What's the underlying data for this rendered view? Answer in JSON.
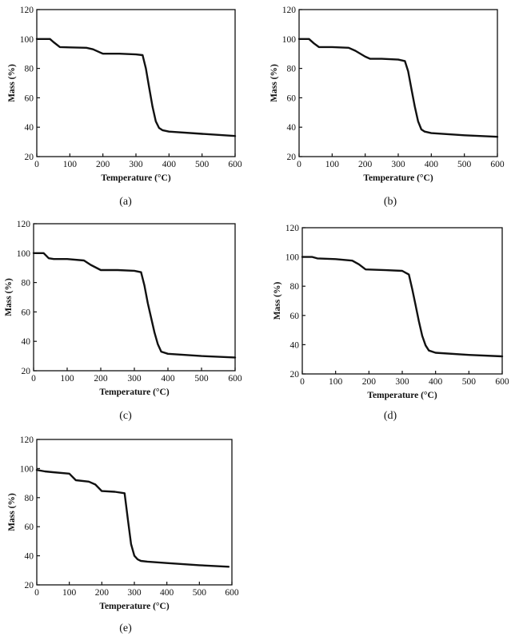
{
  "chart_data": [
    {
      "type": "line",
      "caption": "(a)",
      "xlabel": "Temperature",
      "xlabel_unit": "(°C)",
      "ylabel": "Mass (%)",
      "xlim": [
        0,
        600
      ],
      "ylim": [
        20,
        120
      ],
      "x_ticks": [
        "0",
        "100",
        "200",
        "300",
        "400",
        "500",
        "600"
      ],
      "y_ticks": [
        "20",
        "40",
        "60",
        "80",
        "100",
        "120"
      ],
      "grid": false,
      "x": [
        0,
        40,
        50,
        70,
        100,
        150,
        170,
        200,
        250,
        300,
        320,
        330,
        340,
        350,
        360,
        370,
        380,
        400,
        500,
        600
      ],
      "y": [
        100,
        100,
        98,
        94.5,
        94.3,
        94,
        93,
        90,
        90,
        89.5,
        89,
        80,
        67,
        54,
        44,
        39.5,
        38,
        37,
        35.5,
        34
      ]
    },
    {
      "type": "line",
      "caption": "(b)",
      "xlabel": "Temperature",
      "xlabel_unit": "(°C)",
      "ylabel": "Mass (%)",
      "xlim": [
        0,
        600
      ],
      "ylim": [
        20,
        120
      ],
      "x_ticks": [
        "0",
        "100",
        "200",
        "300",
        "400",
        "500",
        "600"
      ],
      "y_ticks": [
        "20",
        "40",
        "60",
        "80",
        "100",
        "120"
      ],
      "grid": false,
      "x": [
        0,
        30,
        45,
        60,
        100,
        150,
        170,
        200,
        215,
        250,
        300,
        320,
        330,
        340,
        350,
        360,
        370,
        380,
        400,
        500,
        600
      ],
      "y": [
        100,
        100,
        97,
        94.5,
        94.5,
        94,
        92,
        88,
        86.5,
        86.5,
        86,
        85,
        78,
        66,
        54,
        44,
        38.5,
        37,
        36,
        34.5,
        33.5
      ]
    },
    {
      "type": "line",
      "caption": "(c)",
      "xlabel": "Temperature",
      "xlabel_unit": "(°C)",
      "ylabel": "Mass (%)",
      "xlim": [
        0,
        600
      ],
      "ylim": [
        20,
        120
      ],
      "x_ticks": [
        "0",
        "100",
        "200",
        "300",
        "400",
        "500",
        "600"
      ],
      "y_ticks": [
        "20",
        "40",
        "60",
        "80",
        "100",
        "120"
      ],
      "grid": false,
      "x": [
        0,
        30,
        45,
        60,
        100,
        150,
        170,
        200,
        250,
        300,
        320,
        330,
        340,
        350,
        360,
        370,
        380,
        400,
        500,
        600
      ],
      "y": [
        100,
        100,
        96.5,
        96,
        96,
        95,
        92,
        88.5,
        88.5,
        88,
        87,
        78,
        66,
        56,
        46,
        38,
        33,
        31.5,
        30,
        29
      ]
    },
    {
      "type": "line",
      "caption": "(d)",
      "xlabel": "Temperature",
      "xlabel_unit": "(°C)",
      "ylabel": "Mass (%)",
      "xlim": [
        0,
        600
      ],
      "ylim": [
        20,
        120
      ],
      "x_ticks": [
        "0",
        "100",
        "200",
        "300",
        "400",
        "500",
        "600"
      ],
      "y_ticks": [
        "20",
        "40",
        "60",
        "80",
        "100",
        "120"
      ],
      "grid": false,
      "x": [
        0,
        30,
        45,
        100,
        150,
        170,
        190,
        250,
        300,
        320,
        330,
        340,
        350,
        360,
        370,
        380,
        400,
        500,
        600
      ],
      "y": [
        100,
        100,
        99,
        98.5,
        97.5,
        95,
        91.5,
        91,
        90.5,
        88,
        78,
        67,
        56,
        46,
        39.5,
        36,
        34.5,
        33,
        32
      ]
    },
    {
      "type": "line",
      "caption": "(e)",
      "xlabel": "Temperature",
      "xlabel_unit": "(°C)",
      "ylabel": "Mass (%)",
      "xlim": [
        0,
        600
      ],
      "ylim": [
        20,
        120
      ],
      "x_ticks": [
        "0",
        "100",
        "200",
        "300",
        "400",
        "500",
        "600"
      ],
      "y_ticks": [
        "20",
        "40",
        "60",
        "80",
        "100",
        "120"
      ],
      "grid": false,
      "x": [
        0,
        25,
        50,
        100,
        120,
        160,
        180,
        200,
        240,
        270,
        280,
        290,
        300,
        310,
        320,
        340,
        400,
        500,
        590
      ],
      "y": [
        99,
        98,
        97.5,
        96.5,
        92,
        91,
        89,
        84.5,
        84,
        83,
        65,
        48,
        40,
        37.5,
        36.5,
        36,
        35,
        33.5,
        32.5
      ]
    }
  ]
}
